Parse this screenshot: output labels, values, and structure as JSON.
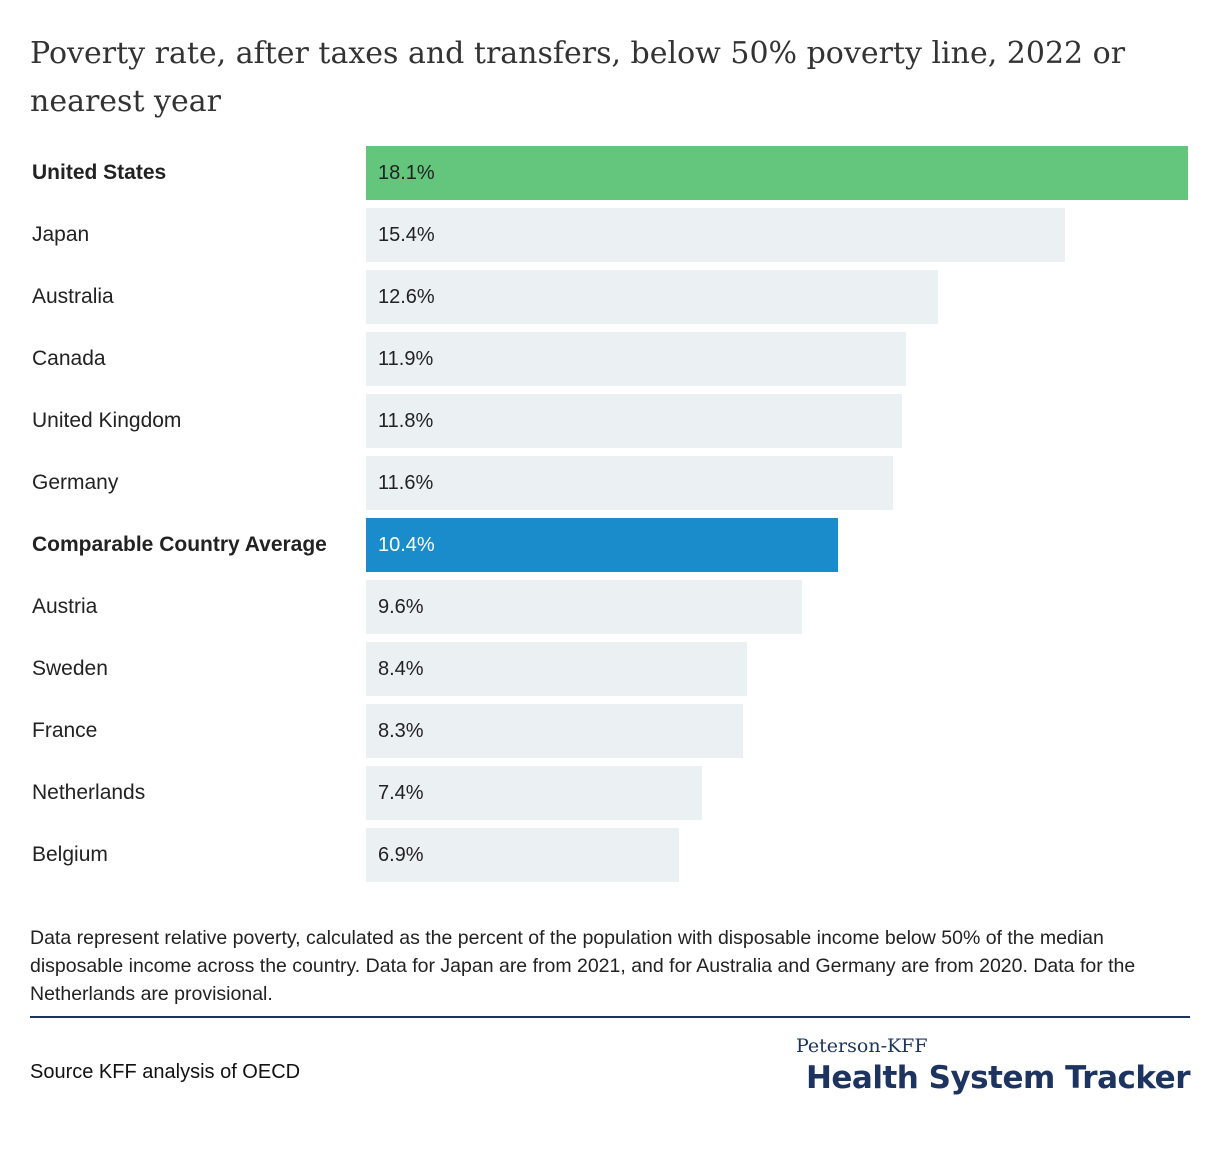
{
  "chart_data": {
    "type": "bar",
    "orientation": "horizontal",
    "title": "Poverty rate, after taxes and transfers, below 50% poverty line, 2022 or nearest year",
    "categories": [
      "United States",
      "Japan",
      "Australia",
      "Canada",
      "United Kingdom",
      "Germany",
      "Comparable Country Average",
      "Austria",
      "Sweden",
      "France",
      "Netherlands",
      "Belgium"
    ],
    "values": [
      18.1,
      15.4,
      12.6,
      11.9,
      11.8,
      11.6,
      10.4,
      9.6,
      8.4,
      8.3,
      7.4,
      6.9
    ],
    "value_labels": [
      "18.1%",
      "15.4%",
      "12.6%",
      "11.9%",
      "11.8%",
      "11.6%",
      "10.4%",
      "9.6%",
      "8.4%",
      "8.3%",
      "7.4%",
      "6.9%"
    ],
    "highlight": {
      "United States": "#64c57d",
      "Comparable Country Average": "#1a8bcb"
    },
    "default_bar_color": "#ebf0f2",
    "bold_labels": [
      "United States",
      "Comparable Country Average"
    ],
    "xlim": [
      0,
      18.1
    ],
    "grid": false,
    "legend": "none"
  },
  "note": "Data represent relative poverty, calculated as the percent of the population with disposable income below 50% of the median disposable income across the country. Data for Japan are from 2021, and for Australia and Germany are from 2020. Data for the Netherlands are provisional.",
  "source": "Source KFF analysis of OECD",
  "brand": {
    "top": "Peterson-KFF",
    "main": "Health System Tracker",
    "color": "#1d3461"
  }
}
